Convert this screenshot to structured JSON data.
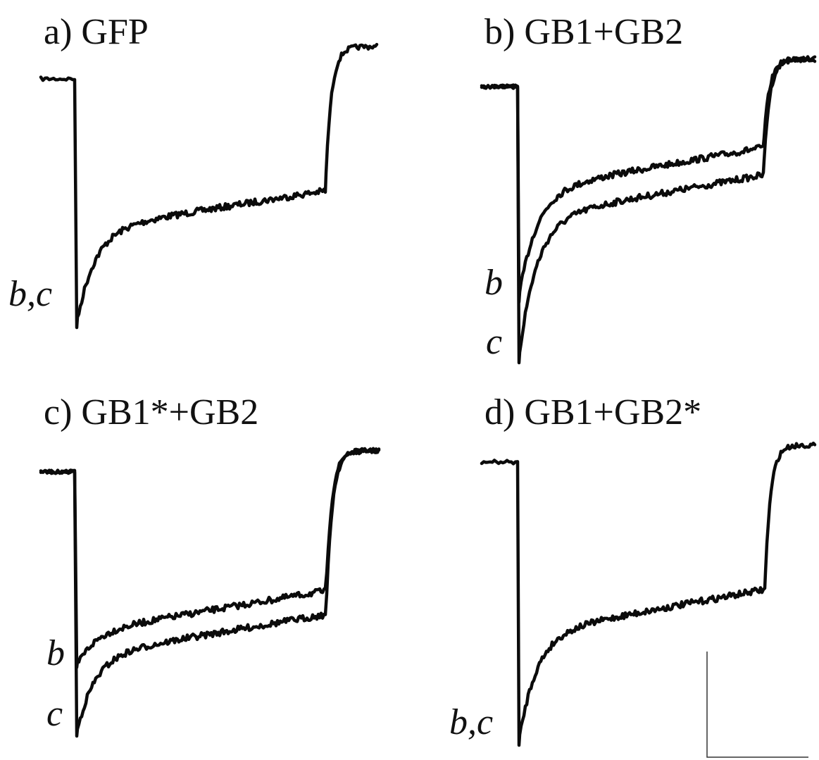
{
  "chart_data": [
    {
      "type": "line",
      "panel": "a",
      "title": "a) GFP",
      "series": [
        {
          "label": "b,c",
          "values": {
            "baseline": 1.0,
            "peak": 0.0,
            "end_of_pulse": 0.55,
            "tail": 1.13
          }
        }
      ]
    },
    {
      "type": "line",
      "panel": "b",
      "title": "b) GB1+GB2",
      "series": [
        {
          "label": "b",
          "values": {
            "baseline": 1.0,
            "peak": 0.22,
            "end_of_pulse": 0.78,
            "tail": 1.1
          }
        },
        {
          "label": "c",
          "values": {
            "baseline": 1.0,
            "peak": 0.0,
            "end_of_pulse": 0.68,
            "tail": 1.1
          }
        }
      ]
    },
    {
      "type": "line",
      "panel": "c",
      "title": "c) GB1*+GB2",
      "series": [
        {
          "label": "b",
          "values": {
            "baseline": 1.0,
            "peak": 0.26,
            "end_of_pulse": 0.55,
            "tail": 1.08
          }
        },
        {
          "label": "c",
          "values": {
            "baseline": 1.0,
            "peak": 0.0,
            "end_of_pulse": 0.46,
            "tail": 1.08
          }
        }
      ]
    },
    {
      "type": "line",
      "panel": "d",
      "title": "d) GB1+GB2*",
      "series": [
        {
          "label": "b,c",
          "values": {
            "baseline": 1.0,
            "peak": 0.0,
            "end_of_pulse": 0.55,
            "tail": 1.06
          }
        }
      ]
    }
  ]
}
